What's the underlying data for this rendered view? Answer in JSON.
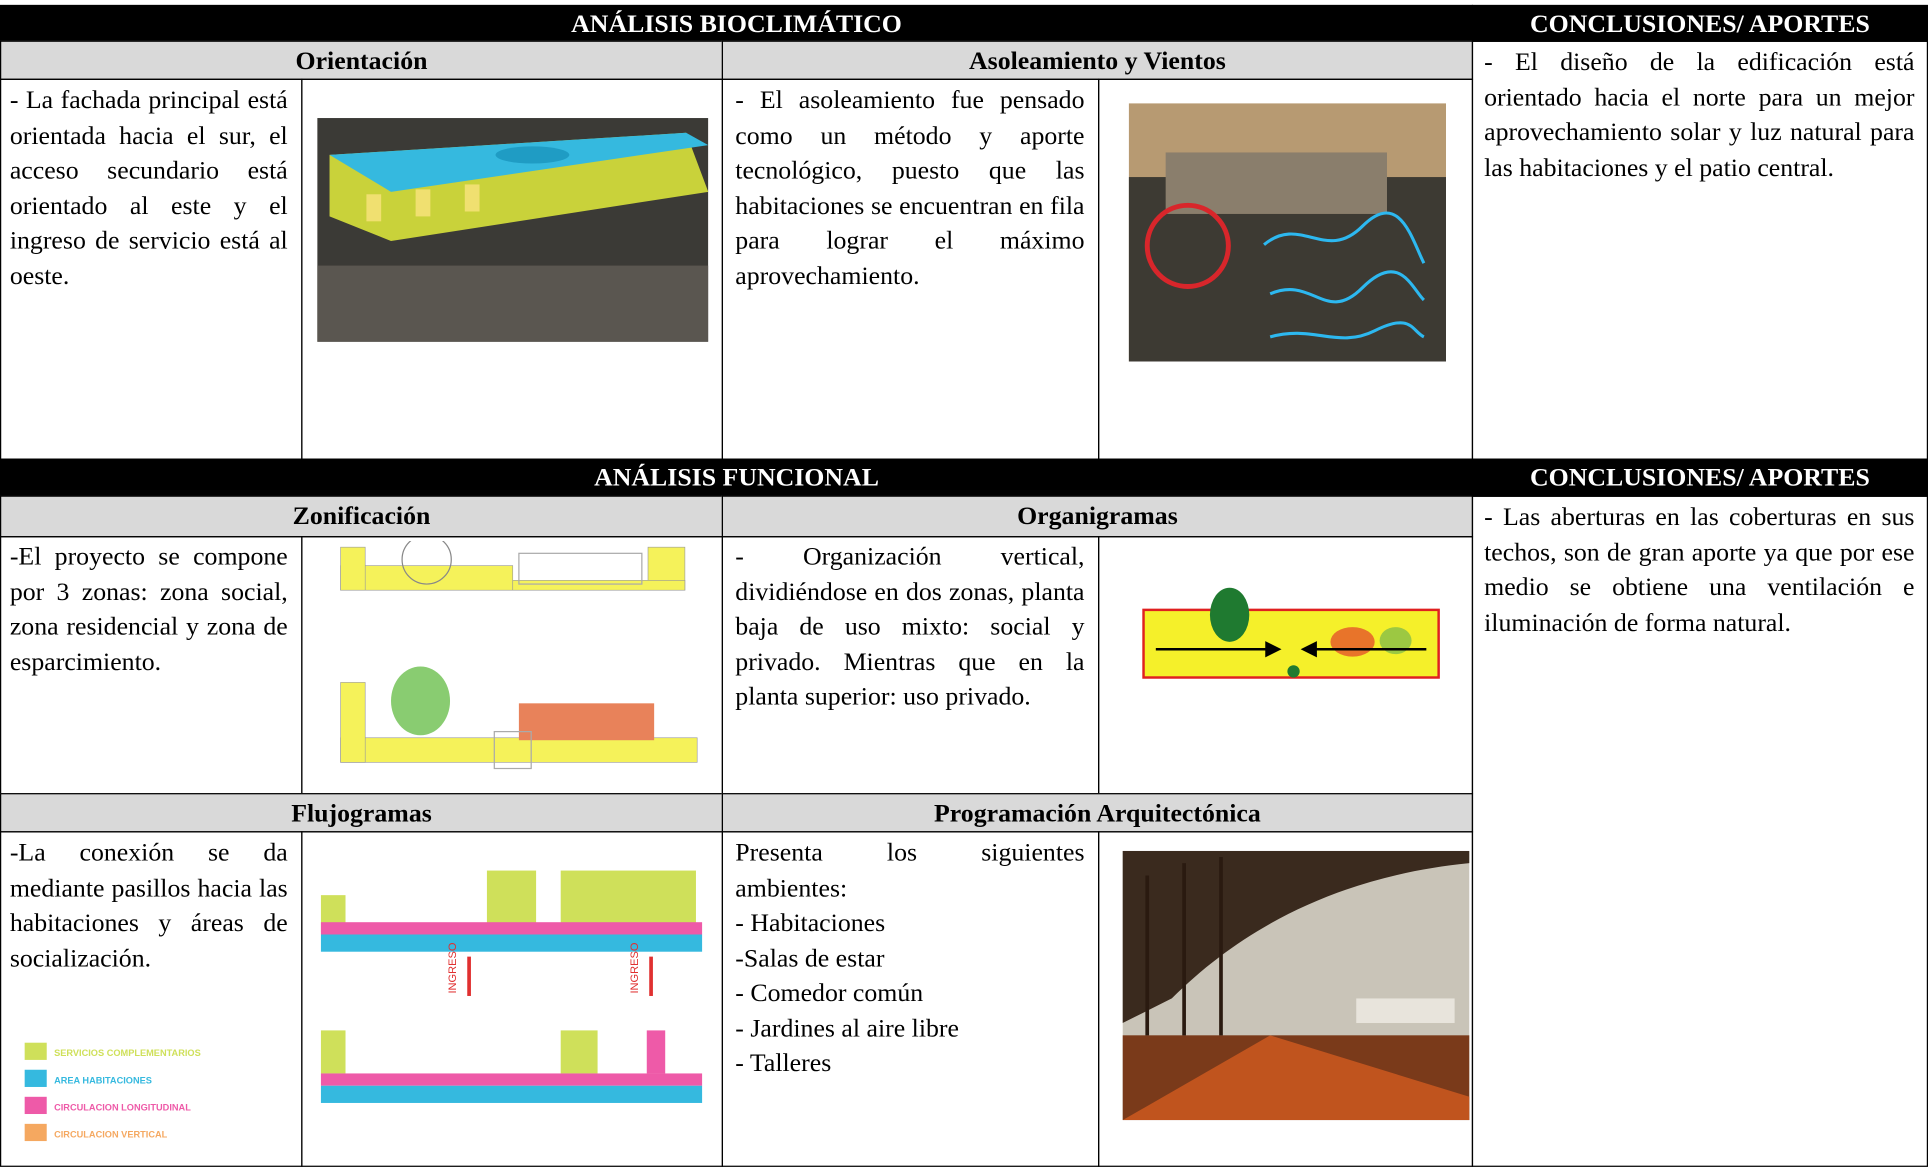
{
  "bioclimatico": {
    "title": "ANÁLISIS BIOCLIMÁTICO",
    "conclusions_title": "CONCLUSIONES/ APORTES",
    "conclusions_text": "- El diseño de la edificación está orientado hacia el norte para un mejor aprovechamiento solar y luz natural para las habitaciones y el patio central.",
    "cells": [
      {
        "heading": "Orientación",
        "text": "- La fachada principal está orientada hacia el sur, el acceso secundario está orientado al este y el ingreso de servicio está al oeste."
      },
      {
        "heading": "Asoleamiento y Vientos",
        "text": "- El asoleamiento fue pensado como un método y aporte tecnológico, puesto que las habitaciones se encuentran en fila para lograr el máximo aprovechamiento."
      }
    ]
  },
  "funcional": {
    "title": "ANÁLISIS FUNCIONAL",
    "conclusions_title": "CONCLUSIONES/ APORTES",
    "conclusions_text": "- Las aberturas en las coberturas en sus techos, son de gran aporte ya que por ese medio se obtiene una ventilación e iluminación de forma natural.",
    "cells": [
      {
        "heading": "Zonificación",
        "text": "-El proyecto se compone por 3 zonas: zona social, zona residencial y zona de esparcimiento."
      },
      {
        "heading": "Organigramas",
        "text": "- Organización vertical, dividiéndose en dos zonas, planta baja de uso mixto: social y privado. Mientras que en la planta superior: uso privado."
      },
      {
        "heading": "Flujogramas",
        "text": "-La conexión se da mediante pasillos hacia las habitaciones y áreas de socialización.",
        "legend": [
          "SERVICIOS COMPLEMENTARIOS",
          "AREA HABITACIONES",
          "CIRCULACION LONGITUDINAL",
          "CIRCULACION VERTICAL"
        ],
        "entrance_label": "INGRESO"
      },
      {
        "heading": "Programación Arquitectónica",
        "intro": "Presenta los siguientes ambientes:",
        "items": [
          "- Habitaciones",
          "-Salas de estar",
          "- Comedor común",
          "- Jardines al aire libre",
          "- Talleres"
        ]
      }
    ]
  }
}
